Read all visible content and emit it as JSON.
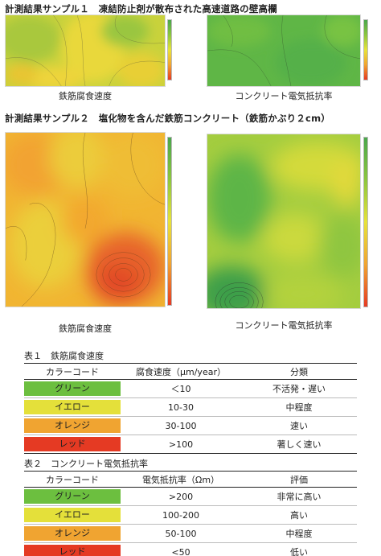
{
  "sample1": {
    "title": "計測結果サンプル１　凍結防止剤が散布された高速道路の壁高欄",
    "caption_left": "鉄筋腐食速度",
    "caption_right": "コンクリート電気抵抗率"
  },
  "sample2": {
    "title": "計測結果サンプル２　塩化物を含んだ鉄筋コンクリート（鉄筋かぶり２cm）",
    "caption_left": "鉄筋腐食速度",
    "caption_right": "コンクリート電気抵抗率"
  },
  "colors": {
    "green": "#6cbf3f",
    "yellow": "#e4e03a",
    "orange": "#f0a431",
    "red": "#e53a23"
  },
  "table1": {
    "title": "表１　鉄筋腐食速度",
    "headers": [
      "カラーコード",
      "腐食速度（μm/year）",
      "分類"
    ],
    "rows": [
      {
        "code": "グリーン",
        "value": "＜10",
        "class": "不活発・遅い"
      },
      {
        "code": "イエロー",
        "value": "10-30",
        "class": "中程度"
      },
      {
        "code": "オレンジ",
        "value": "30-100",
        "class": "速い"
      },
      {
        "code": "レッド",
        "value": ">100",
        "class": "著しく速い"
      }
    ]
  },
  "table2": {
    "title": "表２　コンクリート電気抵抗率",
    "headers": [
      "カラーコード",
      "電気抵抗率（Ωm）",
      "評価"
    ],
    "rows": [
      {
        "code": "グリーン",
        "value": ">200",
        "class": "非常に高い"
      },
      {
        "code": "イエロー",
        "value": "100-200",
        "class": "高い"
      },
      {
        "code": "オレンジ",
        "value": "50-100",
        "class": "中程度"
      },
      {
        "code": "レッド",
        "value": "<50",
        "class": "低い"
      }
    ]
  }
}
